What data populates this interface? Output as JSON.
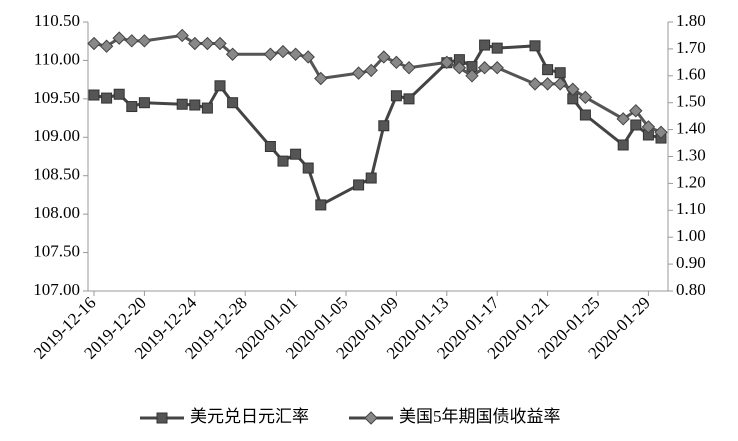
{
  "chart_data": {
    "type": "line",
    "x": [
      "2019-12-16",
      "2019-12-17",
      "2019-12-18",
      "2019-12-19",
      "2019-12-20",
      "2019-12-23",
      "2019-12-24",
      "2019-12-25",
      "2019-12-26",
      "2019-12-27",
      "2019-12-30",
      "2019-12-31",
      "2020-01-01",
      "2020-01-02",
      "2020-01-03",
      "2020-01-06",
      "2020-01-07",
      "2020-01-08",
      "2020-01-09",
      "2020-01-10",
      "2020-01-13",
      "2020-01-14",
      "2020-01-15",
      "2020-01-16",
      "2020-01-17",
      "2020-01-20",
      "2020-01-21",
      "2020-01-22",
      "2020-01-23",
      "2020-01-24",
      "2020-01-27",
      "2020-01-28",
      "2020-01-29",
      "2020-01-30"
    ],
    "series": [
      {
        "name": "美元兑日元汇率",
        "color": "#555555",
        "marker": "square",
        "values": [
          109.55,
          109.51,
          109.56,
          109.4,
          109.45,
          109.43,
          109.42,
          109.38,
          109.67,
          109.45,
          108.88,
          108.69,
          108.78,
          108.6,
          108.12,
          108.38,
          108.47,
          109.15,
          109.54,
          109.5,
          109.97,
          110.01,
          109.92,
          110.2,
          110.16,
          110.19,
          109.88,
          109.84,
          109.5,
          109.29,
          108.9,
          109.16,
          109.03,
          108.99
        ]
      },
      {
        "name": "美国5年期国债收益率",
        "color": "#888888",
        "marker": "diamond",
        "axis": "y2",
        "values": [
          1.72,
          1.71,
          1.74,
          1.73,
          1.73,
          1.75,
          1.72,
          1.72,
          1.72,
          1.68,
          1.68,
          1.69,
          1.68,
          1.67,
          1.59,
          1.61,
          1.62,
          1.67,
          1.65,
          1.63,
          1.65,
          1.63,
          1.6,
          1.63,
          1.63,
          1.57,
          1.57,
          1.57,
          1.55,
          1.52,
          1.44,
          1.47,
          1.41,
          1.39
        ]
      }
    ],
    "xticks": [
      "2019-12-16",
      "2019-12-20",
      "2019-12-24",
      "2019-12-28",
      "2020-01-01",
      "2020-01-05",
      "2020-01-09",
      "2020-01-13",
      "2020-01-17",
      "2020-01-21",
      "2020-01-25",
      "2020-01-29"
    ],
    "ylim": [
      107.0,
      110.5
    ],
    "yticks": [
      {
        "value": 107.0,
        "label": "107.00"
      },
      {
        "value": 107.5,
        "label": "107.50"
      },
      {
        "value": 108.0,
        "label": "108.00"
      },
      {
        "value": 108.5,
        "label": "108.50"
      },
      {
        "value": 109.0,
        "label": "109.00"
      },
      {
        "value": 109.5,
        "label": "109.50"
      },
      {
        "value": 110.0,
        "label": "110.00"
      },
      {
        "value": 110.5,
        "label": "110.50"
      }
    ],
    "y2lim": [
      0.8,
      1.8
    ],
    "y2ticks": [
      {
        "value": 0.8,
        "label": "0.80"
      },
      {
        "value": 0.9,
        "label": "0.90"
      },
      {
        "value": 1.0,
        "label": "1.00"
      },
      {
        "value": 1.1,
        "label": "1.10"
      },
      {
        "value": 1.2,
        "label": "1.20"
      },
      {
        "value": 1.3,
        "label": "1.30"
      },
      {
        "value": 1.4,
        "label": "1.40"
      },
      {
        "value": 1.5,
        "label": "1.50"
      },
      {
        "value": 1.6,
        "label": "1.60"
      },
      {
        "value": 1.7,
        "label": "1.70"
      },
      {
        "value": 1.8,
        "label": "1.80"
      }
    ],
    "legend": "bottom"
  }
}
